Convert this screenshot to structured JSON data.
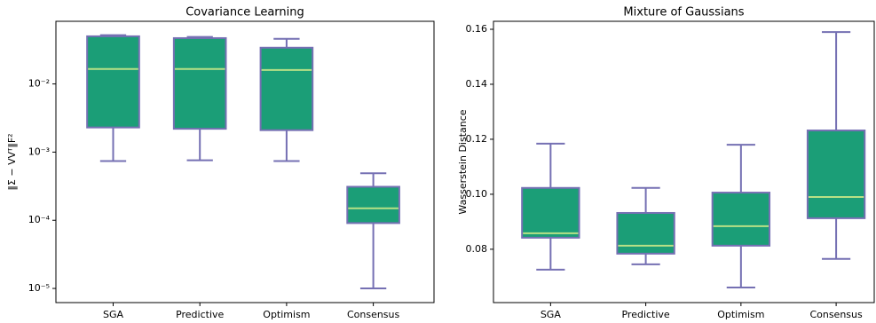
{
  "chart_data": [
    {
      "type": "box",
      "title": "Covariance Learning",
      "y_label": "‖Σ − VVᵀ‖F²",
      "categories": [
        "SGA",
        "Predictive",
        "Optimism",
        "Consensus"
      ],
      "whislo": [
        0.00074,
        0.00076,
        0.00074,
        1e-05
      ],
      "q1": [
        0.0023,
        0.0022,
        0.0021,
        9.1e-05
      ],
      "med": [
        0.0166,
        0.0166,
        0.016,
        0.00015
      ],
      "q3": [
        0.05,
        0.047,
        0.034,
        0.00031
      ],
      "whishi": [
        0.052,
        0.049,
        0.046,
        0.00049
      ],
      "log_scale": true,
      "ylim": [
        6.2e-06,
        0.083
      ],
      "yticks": [
        {
          "value": 1e-05,
          "label": "10⁻⁵"
        },
        {
          "value": 0.0001,
          "label": "10⁻⁴"
        },
        {
          "value": 0.001,
          "label": "10⁻³"
        },
        {
          "value": 0.01,
          "label": "10⁻²"
        }
      ],
      "color": "#1b9e77",
      "edge_color": "#7570b3",
      "median_color": "#b8e186"
    },
    {
      "type": "box",
      "title": "Mixture of Gaussians",
      "y_label": "Wasserstein Distance",
      "categories": [
        "SGA",
        "Predictive",
        "Optimism",
        "Consensus"
      ],
      "whislo": [
        0.0726,
        0.0745,
        0.0661,
        0.0765
      ],
      "q1": [
        0.0842,
        0.0784,
        0.0813,
        0.0913
      ],
      "med": [
        0.0858,
        0.0813,
        0.0884,
        0.099
      ],
      "q3": [
        0.1023,
        0.0932,
        0.1006,
        0.1232
      ],
      "whishi": [
        0.1184,
        0.1023,
        0.118,
        0.159
      ],
      "log_scale": false,
      "ylim": [
        0.0606,
        0.1629
      ],
      "yticks": [
        0.08,
        {
          "value": 0.1,
          "label": "0.10"
        },
        0.12,
        0.14,
        0.16
      ],
      "color": "#1b9e77",
      "edge_color": "#7570b3",
      "median_color": "#b8e186"
    }
  ]
}
